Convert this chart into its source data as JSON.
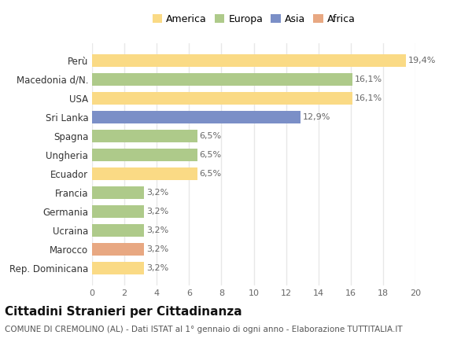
{
  "categories": [
    "Rep. Dominicana",
    "Marocco",
    "Ucraina",
    "Germania",
    "Francia",
    "Ecuador",
    "Ungheria",
    "Spagna",
    "Sri Lanka",
    "USA",
    "Macedonia d/N.",
    "Perù"
  ],
  "values": [
    3.2,
    3.2,
    3.2,
    3.2,
    3.2,
    6.5,
    6.5,
    6.5,
    12.9,
    16.1,
    16.1,
    19.4
  ],
  "continents": [
    "America",
    "Africa",
    "Europa",
    "Europa",
    "Europa",
    "America",
    "Europa",
    "Europa",
    "Asia",
    "America",
    "Europa",
    "America"
  ],
  "colors": {
    "America": "#FADA85",
    "Europa": "#AECA8A",
    "Asia": "#7B8FC7",
    "Africa": "#E8A882"
  },
  "legend_order": [
    "America",
    "Europa",
    "Asia",
    "Africa"
  ],
  "title": "Cittadini Stranieri per Cittadinanza",
  "subtitle": "COMUNE DI CREMOLINO (AL) - Dati ISTAT al 1° gennaio di ogni anno - Elaborazione TUTTITALIA.IT",
  "xlim": [
    0,
    20
  ],
  "xticks": [
    0,
    2,
    4,
    6,
    8,
    10,
    12,
    14,
    16,
    18,
    20
  ],
  "bg_color": "#ffffff",
  "grid_color": "#e8e8e8",
  "label_color": "#666666",
  "title_fontsize": 11,
  "subtitle_fontsize": 7.5,
  "tick_fontsize": 8,
  "bar_label_fontsize": 8,
  "ylabel_fontsize": 8.5,
  "legend_fontsize": 9
}
